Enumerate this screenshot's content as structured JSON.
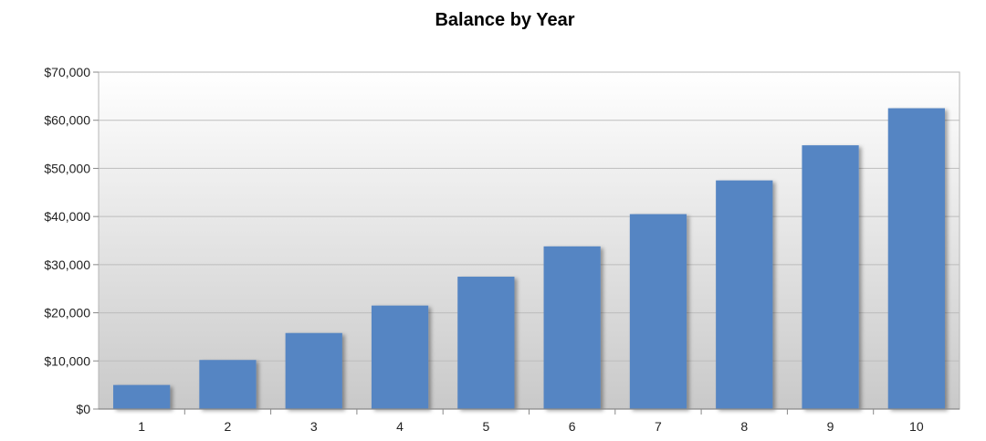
{
  "chart_data": {
    "type": "bar",
    "title": "Balance by Year",
    "xlabel": "",
    "ylabel": "",
    "categories": [
      "1",
      "2",
      "3",
      "4",
      "5",
      "6",
      "7",
      "8",
      "9",
      "10"
    ],
    "values": [
      5000,
      10200,
      15800,
      21500,
      27500,
      33800,
      40500,
      47500,
      54800,
      62500
    ],
    "ylim": [
      0,
      70000
    ],
    "yticks": [
      0,
      10000,
      20000,
      30000,
      40000,
      50000,
      60000,
      70000
    ],
    "ytick_labels": [
      "$0",
      "$10,000",
      "$20,000",
      "$30,000",
      "$40,000",
      "$50,000",
      "$60,000",
      "$70,000"
    ],
    "grid": true,
    "legend": "none",
    "bar_color": "#5585C3"
  }
}
